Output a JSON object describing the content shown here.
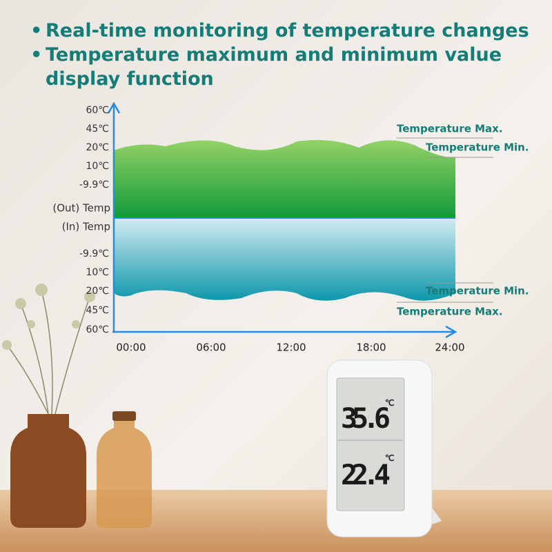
{
  "bullets": [
    "Real-time monitoring of temperature changes",
    "Temperature maximum and minimum value display function"
  ],
  "chart": {
    "y_labels_top": [
      "60℃",
      "45℃",
      "20℃",
      "10℃",
      "-9.9℃"
    ],
    "out_label": "(Out) Temp",
    "in_label": "(In) Temp",
    "y_labels_bottom": [
      "-9.9℃",
      "10℃",
      "20℃",
      "45℃",
      "60℃"
    ],
    "x_labels": [
      "00:00",
      "06:00",
      "12:00",
      "18:00",
      "24:00"
    ],
    "annotations_top": [
      "Temperature Max.",
      "Temperature Min."
    ],
    "annotations_bottom": [
      "Temperature Min.",
      "Temperature Max."
    ]
  },
  "device": {
    "outdoor": "35.6",
    "outdoor_unit": "℃",
    "indoor": "22.4",
    "indoor_unit": "℃"
  }
}
